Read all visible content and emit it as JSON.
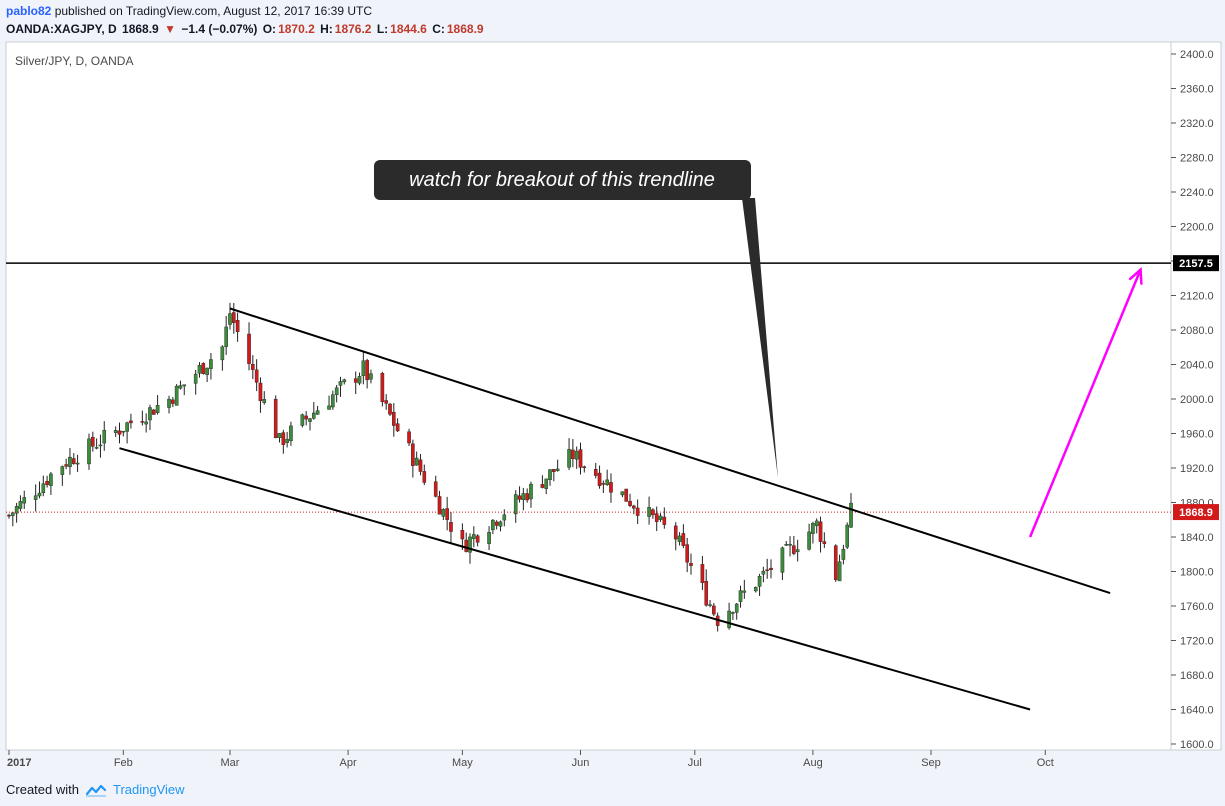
{
  "header": {
    "author": "pablo82",
    "published": "published on TradingView.com, August 12, 2017 16:39 UTC"
  },
  "ticker": {
    "symbol": "OANDA:XAGJPY, D",
    "last": "1868.9",
    "change": "−1.4 (−0.07%)",
    "o_label": "O:",
    "o": "1870.2",
    "h_label": "H:",
    "h": "1876.2",
    "l_label": "L:",
    "l": "1844.6",
    "c_label": "C:",
    "c": "1868.9"
  },
  "footer": {
    "created_with": "Created with",
    "brand": "TradingView"
  },
  "colors": {
    "up": "#3c8c3c",
    "down": "#d11a1a",
    "arrow": "#ff00ff",
    "price_line": "#d11a1a",
    "accent": "#2196f3"
  },
  "chart_data": {
    "type": "candlestick",
    "title": "Silver/JPY, D, OANDA",
    "y_axis": {
      "range": [
        1600,
        2400
      ],
      "ticks": [
        "2400.0",
        "2360.0",
        "2320.0",
        "2280.0",
        "2240.0",
        "2200.0",
        "2160.0",
        "2120.0",
        "2080.0",
        "2040.0",
        "2000.0",
        "1960.0",
        "1920.0",
        "1880.0",
        "1840.0",
        "1800.0",
        "1760.0",
        "1720.0",
        "1680.0",
        "1640.0",
        "1600.0"
      ],
      "tick_values": [
        2400,
        2360,
        2320,
        2280,
        2240,
        2200,
        2160,
        2120,
        2080,
        2040,
        2000,
        1960,
        1920,
        1880,
        1840,
        1800,
        1760,
        1720,
        1680,
        1640,
        1600
      ]
    },
    "x_axis": {
      "labels": [
        "2017",
        "Feb",
        "Mar",
        "Apr",
        "May",
        "Jun",
        "Jul",
        "Aug",
        "Sep",
        "Oct"
      ],
      "label_dates": [
        "2017-01-02",
        "2017-02-01",
        "2017-03-01",
        "2017-04-01",
        "2017-05-01",
        "2017-06-01",
        "2017-07-01",
        "2017-08-01",
        "2017-09-01",
        "2017-10-01"
      ],
      "range": [
        "2017-01-01",
        "2017-11-02"
      ]
    },
    "price_labels": {
      "resistance": "2157.5",
      "current": "1868.9"
    },
    "resistance_level": 2157.5,
    "current_price": 1868.9,
    "annotation": "watch for breakout of this trendline",
    "trendlines": [
      {
        "name": "upper channel",
        "from": {
          "date": "2017-03-01",
          "value": 2105
        },
        "to": {
          "date": "2017-10-18",
          "value": 1775
        }
      },
      {
        "name": "lower channel",
        "from": {
          "date": "2017-01-31",
          "value": 1943
        },
        "to": {
          "date": "2017-09-27",
          "value": 1640
        }
      }
    ],
    "projection_arrow": {
      "from": {
        "date": "2017-09-27",
        "value": 1840
      },
      "to": {
        "date": "2017-10-26",
        "value": 2150
      }
    },
    "key_prices": [
      {
        "date": "2017-01-02",
        "close": 1865
      },
      {
        "date": "2017-01-16",
        "close": 1925
      },
      {
        "date": "2017-02-13",
        "close": 2000
      },
      {
        "date": "2017-02-27",
        "close": 2060
      },
      {
        "date": "2017-03-01",
        "close": 2100
      },
      {
        "date": "2017-03-14",
        "close": 1950
      },
      {
        "date": "2017-04-05",
        "close": 2035
      },
      {
        "date": "2017-05-01",
        "close": 1830
      },
      {
        "date": "2017-05-30",
        "close": 1935
      },
      {
        "date": "2017-06-26",
        "close": 1840
      },
      {
        "date": "2017-07-07",
        "close": 1745
      },
      {
        "date": "2017-08-02",
        "close": 1855
      },
      {
        "date": "2017-08-07",
        "close": 1795
      },
      {
        "date": "2017-08-11",
        "close": 1868.9
      }
    ]
  }
}
